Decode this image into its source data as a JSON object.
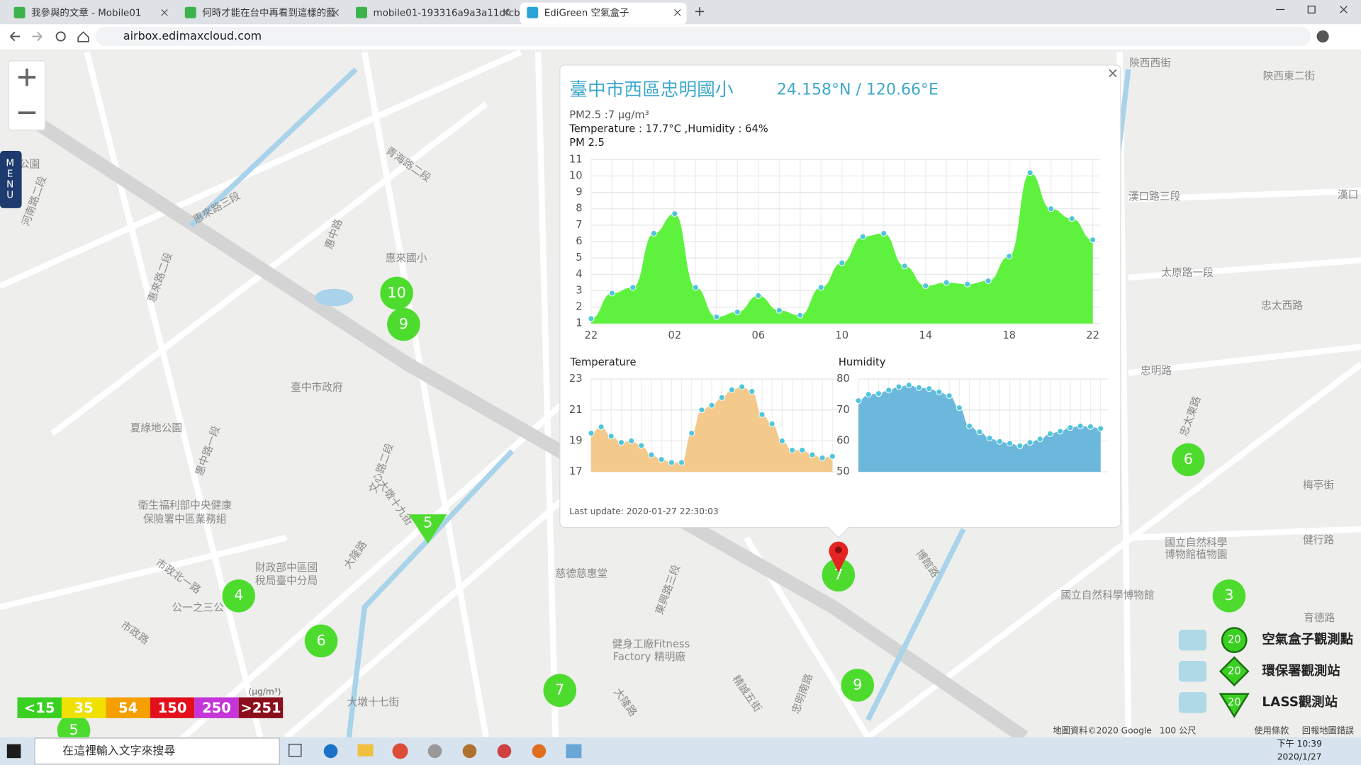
{
  "browser": {
    "tabs": [
      "我參與的文章 - Mobile01",
      "何時才能在台中再看到這樣的藍",
      "mobile01-193316a9a3a11dfcb",
      "EdiGreen 空氣盒子"
    ],
    "url": "airbox.edimaxcloud.com"
  },
  "map": {
    "menu": "MENU",
    "labels": [
      "態公園",
      "河南路二段",
      "惠來路二段",
      "惠來國小",
      "臺中市政府",
      "夏綠地公園",
      "惠中路一段",
      "衛生福利部中央健康",
      "保險署中區業務組",
      "財政部中區國",
      "稅局臺中分局",
      "公一之三公",
      "市政北一路",
      "市政路",
      "大墩十七街",
      "大隆路",
      "文心路二段",
      "大墩十九街",
      "慈德慈惠堂",
      "健身工廠Fitness",
      "Factory 精明廠",
      "東興路三段",
      "大隆路",
      "忠明南路",
      "博館路",
      "精誠五街",
      "國立自然科學",
      "博物館植物園",
      "國立自然科學博物館",
      "健行路",
      "育德路",
      "梅亭街",
      "忠明路",
      "忠太東路",
      "太原路一段",
      "漢口路三段",
      "忠太西路",
      "陝西西街",
      "陝西東二街",
      "惠中路",
      "青海路二段",
      "惠來路三段",
      "漢口"
    ],
    "markers": [
      10,
      9,
      5,
      4,
      6,
      7,
      9,
      6,
      3,
      5,
      7
    ],
    "marker_color": "#4ddc2e"
  },
  "pm_legend": {
    "labels": [
      "<15",
      "35",
      "54",
      "150",
      "250",
      ">251"
    ],
    "colors": [
      "#3ad022",
      "#f0e000",
      "#f5a000",
      "#e3101c",
      "#c535d8",
      "#8c0d1c"
    ],
    "unit": "(μg/m³)"
  },
  "stations": [
    {
      "badge": 20,
      "label": "空氣盒子觀測點"
    },
    {
      "badge": 20,
      "label": "環保署觀測站"
    },
    {
      "badge": 20,
      "label": "LASS觀測站"
    }
  ],
  "popup": {
    "title": "臺中市西區忠明國小",
    "coords": "24.158°N / 120.66°E",
    "pm_line": "PM2.5 :7 μg/m³",
    "weather_line": "Temperature : 17.7°C ,Humidity : 64%",
    "pm25_chart": {
      "type": "area",
      "title": "PM 2.5",
      "color": "#5ef23f",
      "dot_color": "#4fc6dc",
      "categories": [
        "22",
        null,
        null,
        null,
        "02",
        null,
        null,
        null,
        "06",
        null,
        null,
        null,
        "10",
        null,
        null,
        null,
        "14",
        null,
        null,
        null,
        "18",
        null,
        null,
        null,
        "22"
      ],
      "values": [
        1.3,
        2.85,
        3.2,
        6.5,
        7.7,
        3.2,
        1.4,
        1.7,
        2.7,
        1.8,
        1.5,
        3.2,
        4.7,
        6.3,
        6.5,
        4.5,
        3.3,
        3.5,
        3.4,
        3.6,
        5.1,
        10.2,
        8.0,
        7.4,
        6.1
      ],
      "ylim": [
        1,
        11
      ],
      "yticks": [
        1,
        2,
        3,
        4,
        5,
        6,
        7,
        8,
        9,
        10,
        11
      ],
      "grid": true
    },
    "temperature_chart": {
      "type": "area",
      "title": "Temperature",
      "color": "#f3c98c",
      "dot_color": "#4fc6dc",
      "values": [
        19.5,
        19.9,
        19.3,
        18.9,
        19.0,
        18.7,
        18.1,
        17.8,
        17.6,
        17.6,
        19.5,
        21.0,
        21.3,
        21.8,
        22.3,
        22.5,
        22.2,
        20.7,
        20.1,
        19.0,
        18.4,
        18.4,
        18.1,
        17.9,
        18.0
      ],
      "ylim": [
        17,
        23
      ],
      "yticks": [
        17,
        19,
        21,
        23
      ],
      "grid": true
    },
    "humidity_chart": {
      "type": "area",
      "title": "Humidity",
      "color": "#6cb7dc",
      "dot_color": "#4fc6dc",
      "values": [
        73,
        75,
        75.3,
        76.4,
        77.5,
        78,
        77.2,
        76.9,
        75.8,
        74.6,
        70.7,
        64.8,
        62.9,
        60.9,
        59.8,
        59.2,
        58.4,
        59.5,
        60.6,
        62.3,
        63.1,
        64.3,
        64.8,
        64.6,
        64
      ],
      "ylim": [
        50,
        80
      ],
      "yticks": [
        50,
        60,
        70,
        80
      ],
      "grid": true
    },
    "updated": "Last update: 2020-01-27 22:30:03"
  },
  "map_footer": [
    "地圖資料©2020 Google",
    "100 公尺",
    "使用條款",
    "回報地圖錯誤"
  ],
  "taskbar": {
    "search": "在這裡輸入文字來搜尋",
    "time": "下午 10:39",
    "date": "2020/1/27"
  }
}
